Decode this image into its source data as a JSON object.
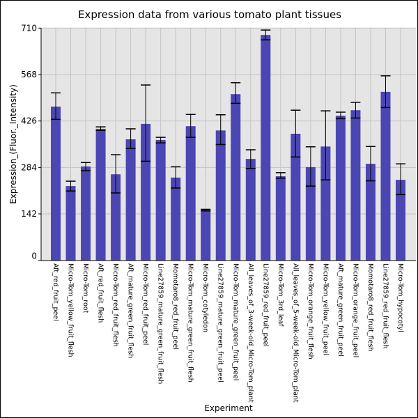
{
  "chart_data": {
    "type": "bar",
    "title": "Expression data from various tomato plant tissues",
    "xlabel": "Experiment",
    "ylabel": "Expression_(Fluor._Intensity)",
    "ylim": [
      0,
      710
    ],
    "yticks": [
      0,
      142,
      284,
      426,
      568,
      710
    ],
    "grid": true,
    "bar_color": "#4b46b3",
    "background": "#e5e5e5",
    "categories": [
      "Aft_red_fruit_peel",
      "Micro-Tom_yellow_fruit_flesh",
      "Micro-Tom_root",
      "Aft_red_fruit_flesh",
      "Micro-Tom_red_fruit_flesh",
      "Aft_mature_green_fruit_flesh",
      "Micro-Tom_red_fruit_peel",
      "Line27859_mature_green_fruit_flesh",
      "Momotaro8_red_fruit_peel",
      "Micro-Tom_mature_green_fruit_flesh",
      "Micro-Tom_cotyledon",
      "Line27859_mature_green_fruit_peel",
      "Micro-Tom_mature_green_fruit_peel",
      "All_leaves_of_3-week-old_Micro-Tom_plant",
      "Line27859_red_fruit_peel",
      "Micro-Tom_3rd_leaf",
      "All_leaves_of_5-week-old_Micro-Tom_plant",
      "Micro-Tom_orange_fruit_flesh",
      "Micro-Tom_yellow_fruit_peel",
      "Aft_mature_green_fruit_peel",
      "Micro-Tom_orange_fruit_peel",
      "Momotaro8_red_fruit_flesh",
      "Line27859_red_fruit_flesh",
      "Micro-Tom_hypocotyl"
    ],
    "values": [
      470,
      227,
      287,
      402,
      263,
      370,
      417,
      368,
      253,
      410,
      155,
      397,
      508,
      310,
      689,
      257,
      387,
      285,
      348,
      442,
      459,
      295,
      515,
      246
    ],
    "err_low": [
      431,
      212,
      274,
      397,
      206,
      342,
      303,
      359,
      221,
      376,
      151,
      354,
      480,
      281,
      674,
      251,
      316,
      227,
      246,
      433,
      435,
      243,
      467,
      201
    ],
    "err_high": [
      512,
      242,
      299,
      408,
      323,
      402,
      536,
      376,
      286,
      446,
      156,
      445,
      543,
      338,
      704,
      268,
      459,
      347,
      457,
      453,
      483,
      348,
      564,
      295
    ]
  }
}
